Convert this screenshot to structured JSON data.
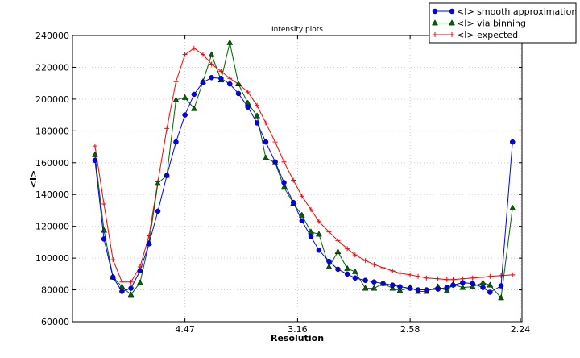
{
  "chart_data": {
    "type": "line",
    "title": "Intensity plots",
    "xlabel": "Resolution",
    "ylabel": "<I>",
    "x_scale": "reciprocal-square (1/d^2)",
    "x_ticks": [
      "4.47",
      "3.16",
      "2.58",
      "2.24"
    ],
    "y_ticks": [
      "60000",
      "80000",
      "100000",
      "120000",
      "140000",
      "160000",
      "180000",
      "200000",
      "220000",
      "240000"
    ],
    "ylim": [
      60000,
      240000
    ],
    "grid": true,
    "legend_position": "top-right",
    "x": [
      10.0,
      8.45,
      7.45,
      6.74,
      6.2,
      5.77,
      5.42,
      5.13,
      4.88,
      4.66,
      4.47,
      4.3,
      4.15,
      4.02,
      3.89,
      3.78,
      3.68,
      3.58,
      3.49,
      3.41,
      3.33,
      3.26,
      3.19,
      3.13,
      3.07,
      3.02,
      2.96,
      2.91,
      2.86,
      2.82,
      2.77,
      2.73,
      2.69,
      2.65,
      2.62,
      2.58,
      2.55,
      2.52,
      2.48,
      2.45,
      2.43,
      2.4,
      2.37,
      2.34,
      2.32,
      2.29,
      2.26
    ],
    "series": [
      {
        "name": "<I> smooth approximation",
        "color": "#0000ff",
        "marker": "circle",
        "values": [
          161500,
          112000,
          88000,
          79000,
          81000,
          92000,
          109000,
          129500,
          152000,
          173000,
          190000,
          203000,
          210500,
          213500,
          213000,
          209500,
          203500,
          195000,
          185000,
          173000,
          160500,
          147500,
          135000,
          123500,
          113500,
          105000,
          98000,
          93000,
          90000,
          87500,
          86000,
          85000,
          84000,
          83000,
          82000,
          81000,
          80000,
          80000,
          80500,
          81500,
          83000,
          84500,
          84000,
          81500,
          78500,
          82500,
          173000
        ]
      },
      {
        "name": "<I> via binning",
        "color": "#006400",
        "marker": "triangle",
        "values": [
          165000,
          117500,
          88000,
          82000,
          77000,
          84500,
          109500,
          147000,
          152000,
          199500,
          201000,
          194000,
          211000,
          228000,
          212000,
          235500,
          209500,
          197500,
          189500,
          163000,
          160000,
          144500,
          134500,
          127000,
          116500,
          115000,
          94500,
          104000,
          93500,
          91500,
          81000,
          81000,
          84000,
          81000,
          79500,
          81500,
          79000,
          79000,
          82000,
          79500,
          83500,
          81500,
          82000,
          84500,
          83000,
          75000,
          131500
        ]
      },
      {
        "name": "<I> expected",
        "color": "#ff0000",
        "marker": "plus",
        "values": [
          170500,
          134000,
          99000,
          85000,
          85000,
          94500,
          114000,
          148000,
          181500,
          211000,
          228000,
          232000,
          228000,
          222000,
          217500,
          213000,
          209500,
          204500,
          196000,
          185000,
          173000,
          160500,
          149000,
          139000,
          130500,
          123000,
          116500,
          111000,
          106000,
          102000,
          98500,
          96000,
          94000,
          92000,
          90500,
          89500,
          88500,
          87500,
          87000,
          86500,
          86500,
          87000,
          87500,
          88000,
          88500,
          89000,
          89500
        ]
      }
    ]
  }
}
